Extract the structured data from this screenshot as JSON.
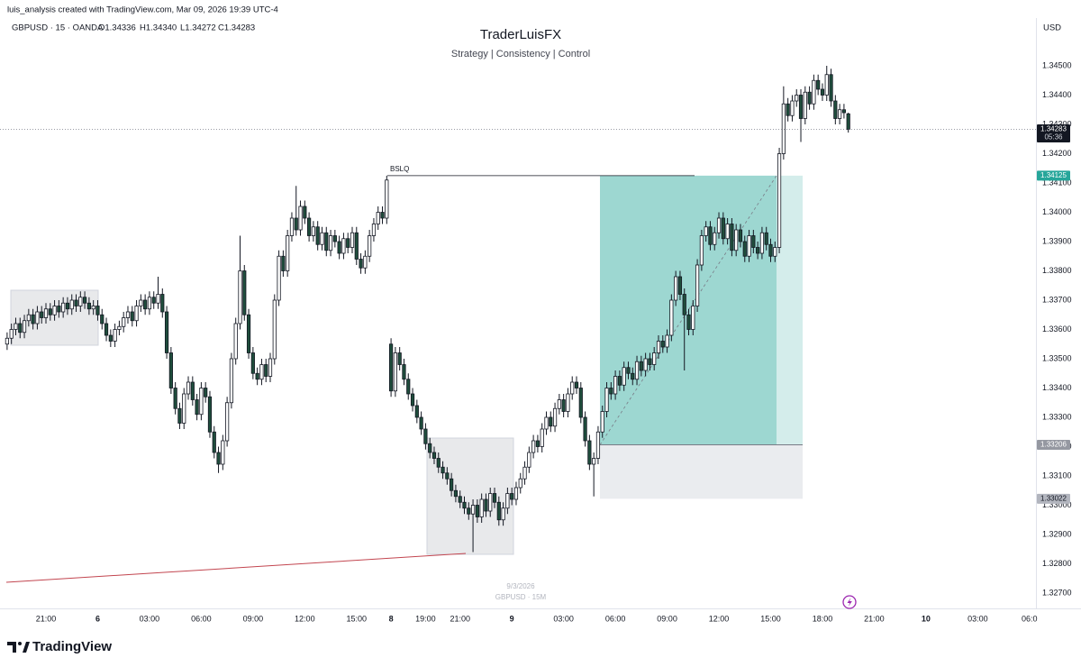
{
  "chart_data": {
    "type": "candlestick",
    "attribution": "luis_analysis created with TradingView.com, Mar 09, 2026 19:39 UTC-4",
    "symbol": "GBPUSD · 15 · OANDA",
    "ohlc_legend": [
      "O1.34336",
      "H1.34340",
      "L1.34272",
      "C1.34283"
    ],
    "title": "TraderLuisFX",
    "subtitle": "Strategy | Consistency | Control",
    "currency": "USD",
    "watermark": [
      "9/3/2026",
      "GBPUSD · 15M"
    ],
    "brand": "TradingView",
    "up_color": "#ffffff",
    "down_color": "#1f4d3c",
    "wick_color": "#131722",
    "grid": false,
    "open": [
      1.3355,
      1.3357,
      1.336,
      1.3362,
      1.3359,
      1.3363,
      1.3365,
      1.3362,
      1.3366,
      1.3364,
      1.3367,
      1.3365,
      1.3368,
      1.3366,
      1.3369,
      1.3367,
      1.337,
      1.3368,
      1.3371,
      1.3369,
      1.3367,
      1.3368,
      1.3365,
      1.3362,
      1.3358,
      1.3356,
      1.336,
      1.3361,
      1.3364,
      1.3366,
      1.3363,
      1.3368,
      1.337,
      1.3367,
      1.3371,
      1.3369,
      1.3372,
      1.3366,
      1.3352,
      1.334,
      1.3333,
      1.3328,
      1.3338,
      1.3342,
      1.3336,
      1.3331,
      1.334,
      1.3337,
      1.3325,
      1.3318,
      1.3314,
      1.3322,
      1.3335,
      1.335,
      1.3362,
      1.338,
      1.3365,
      1.3352,
      1.3345,
      1.3343,
      1.3348,
      1.3344,
      1.335,
      1.337,
      1.3385,
      1.338,
      1.3392,
      1.3398,
      1.3394,
      1.3402,
      1.3398,
      1.3392,
      1.3395,
      1.3389,
      1.3393,
      1.3387,
      1.3392,
      1.339,
      1.3386,
      1.3391,
      1.3388,
      1.3393,
      1.3384,
      1.3381,
      1.3385,
      1.3392,
      1.3396,
      1.34,
      1.3398,
      1.3355,
      1.3339,
      1.3352,
      1.3348,
      1.3343,
      1.3338,
      1.3334,
      1.333,
      1.3326,
      1.3321,
      1.3318,
      1.3316,
      1.3313,
      1.3311,
      1.3309,
      1.3305,
      1.3303,
      1.3301,
      1.3299,
      1.3297,
      1.33,
      1.3296,
      1.3302,
      1.3298,
      1.3304,
      1.3301,
      1.3295,
      1.3299,
      1.3304,
      1.3302,
      1.3306,
      1.3309,
      1.3313,
      1.3318,
      1.3322,
      1.332,
      1.3326,
      1.333,
      1.3327,
      1.3333,
      1.3336,
      1.3332,
      1.3338,
      1.3342,
      1.334,
      1.333,
      1.3322,
      1.3314,
      1.3316,
      1.3325,
      1.3332,
      1.334,
      1.3338,
      1.3344,
      1.3341,
      1.3347,
      1.3345,
      1.3343,
      1.3349,
      1.3346,
      1.335,
      1.3348,
      1.3352,
      1.3356,
      1.3354,
      1.3358,
      1.337,
      1.3378,
      1.3372,
      1.3365,
      1.336,
      1.3368,
      1.3382,
      1.3392,
      1.3395,
      1.3389,
      1.3393,
      1.3398,
      1.3391,
      1.3396,
      1.3387,
      1.3394,
      1.339,
      1.3385,
      1.3392,
      1.3388,
      1.3386,
      1.3393,
      1.3389,
      1.3385,
      1.3388,
      1.342,
      1.3437,
      1.3433,
      1.3438,
      1.344,
      1.3432,
      1.3441,
      1.3437,
      1.3445,
      1.3442,
      1.344,
      1.3447,
      1.3438,
      1.3432,
      1.3435,
      1.34336
    ],
    "high": [
      1.3359,
      1.3362,
      1.3364,
      1.3364,
      1.3365,
      1.3367,
      1.3367,
      1.3368,
      1.3368,
      1.3369,
      1.3369,
      1.337,
      1.337,
      1.3371,
      1.3371,
      1.3372,
      1.3372,
      1.3373,
      1.3373,
      1.3371,
      1.337,
      1.337,
      1.3367,
      1.3364,
      1.336,
      1.3362,
      1.3363,
      1.3366,
      1.3368,
      1.3368,
      1.337,
      1.3372,
      1.3372,
      1.3373,
      1.3373,
      1.3378,
      1.3374,
      1.3368,
      1.3354,
      1.3342,
      1.3335,
      1.334,
      1.3344,
      1.3344,
      1.3338,
      1.3342,
      1.3342,
      1.3339,
      1.3327,
      1.332,
      1.3324,
      1.3337,
      1.3352,
      1.3364,
      1.3392,
      1.3382,
      1.3367,
      1.3354,
      1.3347,
      1.335,
      1.335,
      1.3352,
      1.3372,
      1.3387,
      1.3387,
      1.3394,
      1.34,
      1.3409,
      1.3404,
      1.3404,
      1.34,
      1.3397,
      1.3397,
      1.3395,
      1.3395,
      1.3394,
      1.3394,
      1.3392,
      1.3393,
      1.3393,
      1.3395,
      1.3395,
      1.3386,
      1.3387,
      1.3394,
      1.3398,
      1.3402,
      1.3402,
      1.34125,
      1.3357,
      1.3354,
      1.3354,
      1.335,
      1.3345,
      1.334,
      1.3336,
      1.3332,
      1.3328,
      1.3323,
      1.332,
      1.3318,
      1.3315,
      1.3313,
      1.3311,
      1.3307,
      1.3305,
      1.3303,
      1.3301,
      1.3302,
      1.3302,
      1.3304,
      1.3304,
      1.3306,
      1.3306,
      1.3303,
      1.3301,
      1.3306,
      1.3306,
      1.3308,
      1.3311,
      1.3315,
      1.332,
      1.3324,
      1.3324,
      1.3328,
      1.3332,
      1.3332,
      1.3335,
      1.3338,
      1.3338,
      1.334,
      1.3344,
      1.3344,
      1.3342,
      1.3332,
      1.3324,
      1.3318,
      1.3327,
      1.3334,
      1.3342,
      1.3342,
      1.3346,
      1.3346,
      1.3349,
      1.3349,
      1.3347,
      1.3351,
      1.3351,
      1.3352,
      1.3352,
      1.3354,
      1.3358,
      1.3358,
      1.336,
      1.3372,
      1.338,
      1.338,
      1.3374,
      1.3367,
      1.337,
      1.3384,
      1.3394,
      1.3397,
      1.3397,
      1.3395,
      1.34,
      1.34,
      1.3398,
      1.3398,
      1.3396,
      1.3396,
      1.3392,
      1.3394,
      1.3394,
      1.339,
      1.3395,
      1.3395,
      1.3391,
      1.339,
      1.3422,
      1.3443,
      1.3439,
      1.344,
      1.3442,
      1.3442,
      1.3443,
      1.3443,
      1.3447,
      1.3447,
      1.3444,
      1.345,
      1.3449,
      1.344,
      1.3437,
      1.3437,
      1.3434
    ],
    "low": [
      1.3353,
      1.3355,
      1.3358,
      1.3357,
      1.3357,
      1.3361,
      1.336,
      1.336,
      1.3362,
      1.3362,
      1.3363,
      1.3363,
      1.3364,
      1.3364,
      1.3365,
      1.3365,
      1.3366,
      1.3366,
      1.3367,
      1.3365,
      1.3365,
      1.3363,
      1.336,
      1.3356,
      1.3354,
      1.3354,
      1.3358,
      1.3359,
      1.3362,
      1.3361,
      1.3361,
      1.3366,
      1.3365,
      1.3365,
      1.3367,
      1.3367,
      1.3364,
      1.335,
      1.3338,
      1.3331,
      1.3326,
      1.3326,
      1.3336,
      1.3334,
      1.3329,
      1.3329,
      1.3335,
      1.3323,
      1.3316,
      1.3311,
      1.3312,
      1.332,
      1.3333,
      1.3348,
      1.336,
      1.3363,
      1.335,
      1.3343,
      1.3341,
      1.3341,
      1.3342,
      1.3342,
      1.3348,
      1.3368,
      1.3378,
      1.3378,
      1.339,
      1.3392,
      1.3392,
      1.3396,
      1.339,
      1.339,
      1.3387,
      1.3387,
      1.3385,
      1.3385,
      1.3388,
      1.3384,
      1.3384,
      1.3386,
      1.3386,
      1.3382,
      1.3379,
      1.3379,
      1.3383,
      1.339,
      1.3394,
      1.3396,
      1.3396,
      1.3337,
      1.3337,
      1.3346,
      1.3341,
      1.3336,
      1.3332,
      1.3328,
      1.3324,
      1.3319,
      1.3316,
      1.3314,
      1.3311,
      1.3309,
      1.3307,
      1.3303,
      1.3301,
      1.3299,
      1.3297,
      1.3295,
      1.3284,
      1.3294,
      1.3294,
      1.3296,
      1.3296,
      1.3299,
      1.3293,
      1.3293,
      1.3297,
      1.33,
      1.33,
      1.3304,
      1.3307,
      1.3311,
      1.3316,
      1.3318,
      1.3318,
      1.3324,
      1.3325,
      1.3325,
      1.3331,
      1.333,
      1.333,
      1.3336,
      1.3338,
      1.3328,
      1.332,
      1.3312,
      1.3303,
      1.3314,
      1.3323,
      1.333,
      1.3336,
      1.3336,
      1.3339,
      1.3339,
      1.3343,
      1.3341,
      1.3341,
      1.3344,
      1.3344,
      1.3346,
      1.3346,
      1.335,
      1.3352,
      1.3352,
      1.3356,
      1.3368,
      1.337,
      1.3346,
      1.3358,
      1.3358,
      1.3366,
      1.338,
      1.339,
      1.3387,
      1.3387,
      1.3391,
      1.3389,
      1.3389,
      1.3385,
      1.3385,
      1.3388,
      1.3383,
      1.3383,
      1.3386,
      1.3384,
      1.3384,
      1.3387,
      1.3383,
      1.3383,
      1.3386,
      1.3418,
      1.3431,
      1.3431,
      1.3436,
      1.3424,
      1.343,
      1.3435,
      1.3435,
      1.344,
      1.3438,
      1.3438,
      1.3436,
      1.343,
      1.343,
      1.3432,
      1.34272
    ],
    "close": [
      1.3357,
      1.336,
      1.3362,
      1.3359,
      1.3363,
      1.3365,
      1.3362,
      1.3366,
      1.3364,
      1.3367,
      1.3365,
      1.3368,
      1.3366,
      1.3369,
      1.3367,
      1.337,
      1.3368,
      1.3371,
      1.3369,
      1.3367,
      1.3368,
      1.3365,
      1.3362,
      1.3358,
      1.3356,
      1.336,
      1.3361,
      1.3364,
      1.3366,
      1.3363,
      1.3368,
      1.337,
      1.3367,
      1.3371,
      1.3369,
      1.3372,
      1.3366,
      1.3352,
      1.334,
      1.3333,
      1.3328,
      1.3338,
      1.3342,
      1.3336,
      1.3331,
      1.334,
      1.3337,
      1.3325,
      1.3318,
      1.3314,
      1.3322,
      1.3335,
      1.335,
      1.3362,
      1.338,
      1.3365,
      1.3352,
      1.3345,
      1.3343,
      1.3348,
      1.3344,
      1.335,
      1.337,
      1.3385,
      1.338,
      1.3392,
      1.3398,
      1.3394,
      1.3402,
      1.3398,
      1.3392,
      1.3395,
      1.3389,
      1.3393,
      1.3387,
      1.3392,
      1.339,
      1.3386,
      1.3391,
      1.3388,
      1.3393,
      1.3384,
      1.3381,
      1.3385,
      1.3392,
      1.3396,
      1.34,
      1.3398,
      1.3411,
      1.3339,
      1.3352,
      1.3348,
      1.3343,
      1.3338,
      1.3334,
      1.333,
      1.3326,
      1.3321,
      1.3318,
      1.3316,
      1.3313,
      1.3311,
      1.3309,
      1.3305,
      1.3303,
      1.3301,
      1.3299,
      1.3297,
      1.33,
      1.3296,
      1.3302,
      1.3298,
      1.3304,
      1.3301,
      1.3295,
      1.3299,
      1.3304,
      1.3302,
      1.3306,
      1.3309,
      1.3313,
      1.3318,
      1.3322,
      1.332,
      1.3326,
      1.333,
      1.3327,
      1.3333,
      1.3336,
      1.3332,
      1.3338,
      1.3342,
      1.334,
      1.333,
      1.3322,
      1.3314,
      1.3316,
      1.3325,
      1.3332,
      1.334,
      1.3338,
      1.3344,
      1.3341,
      1.3347,
      1.3345,
      1.3343,
      1.3349,
      1.3346,
      1.335,
      1.3348,
      1.3352,
      1.3356,
      1.3354,
      1.3358,
      1.337,
      1.3378,
      1.3372,
      1.3365,
      1.336,
      1.3368,
      1.3382,
      1.3392,
      1.3395,
      1.3389,
      1.3393,
      1.3398,
      1.3391,
      1.3396,
      1.3387,
      1.3394,
      1.339,
      1.3385,
      1.3392,
      1.3388,
      1.3386,
      1.3393,
      1.3389,
      1.3385,
      1.3388,
      1.342,
      1.3437,
      1.3433,
      1.3438,
      1.344,
      1.3432,
      1.3441,
      1.3437,
      1.3445,
      1.3442,
      1.344,
      1.3447,
      1.3438,
      1.3432,
      1.3435,
      1.3434,
      1.34283
    ],
    "xlim": [
      -1.65,
      238.5
    ],
    "xticks": [
      {
        "value": 9,
        "label": "21:00"
      },
      {
        "value": 21,
        "label": "6"
      },
      {
        "value": 33,
        "label": "03:00"
      },
      {
        "value": 45,
        "label": "06:00"
      },
      {
        "value": 57,
        "label": "09:00"
      },
      {
        "value": 69,
        "label": "12:00"
      },
      {
        "value": 81,
        "label": "15:00"
      },
      {
        "value": 89,
        "label": "8"
      },
      {
        "value": 97,
        "label": "19:00"
      },
      {
        "value": 105,
        "label": "21:00"
      },
      {
        "value": 117,
        "label": "9"
      },
      {
        "value": 129,
        "label": "03:00"
      },
      {
        "value": 141,
        "label": "06:00"
      },
      {
        "value": 153,
        "label": "09:00"
      },
      {
        "value": 165,
        "label": "12:00"
      },
      {
        "value": 177,
        "label": "15:00"
      },
      {
        "value": 189,
        "label": "18:00"
      },
      {
        "value": 201,
        "label": "21:00"
      },
      {
        "value": 213,
        "label": "10"
      },
      {
        "value": 225,
        "label": "03:00"
      },
      {
        "value": 237,
        "label": "06:0"
      }
    ],
    "ylim": [
      1.3265,
      1.3459
    ],
    "yticks": [
      {
        "value": 1.345,
        "label": "1.34500"
      },
      {
        "value": 1.344,
        "label": "1.34400"
      },
      {
        "value": 1.343,
        "label": "1.34300"
      },
      {
        "value": 1.342,
        "label": "1.34200"
      },
      {
        "value": 1.341,
        "label": "1.34100"
      },
      {
        "value": 1.34,
        "label": "1.34000"
      },
      {
        "value": 1.339,
        "label": "1.33900"
      },
      {
        "value": 1.338,
        "label": "1.33800"
      },
      {
        "value": 1.337,
        "label": "1.33700"
      },
      {
        "value": 1.336,
        "label": "1.33600"
      },
      {
        "value": 1.335,
        "label": "1.33500"
      },
      {
        "value": 1.334,
        "label": "1.33400"
      },
      {
        "value": 1.333,
        "label": "1.33300"
      },
      {
        "value": 1.332,
        "label": "1.33200"
      },
      {
        "value": 1.331,
        "label": "1.33100"
      },
      {
        "value": 1.33,
        "label": "1.33000"
      },
      {
        "value": 1.329,
        "label": "1.32900"
      },
      {
        "value": 1.328,
        "label": "1.32800"
      },
      {
        "value": 1.327,
        "label": "1.32700"
      }
    ],
    "annotation": {
      "text": "BSLQ",
      "value": 1.34125
    },
    "current_price": {
      "value": 1.34283,
      "countdown": "05:36"
    },
    "position": {
      "target": 1.34125,
      "entry": 1.33206,
      "stop": 1.33022,
      "profit_color": "#26a69a",
      "stop_color": "#d1d4dc"
    }
  }
}
